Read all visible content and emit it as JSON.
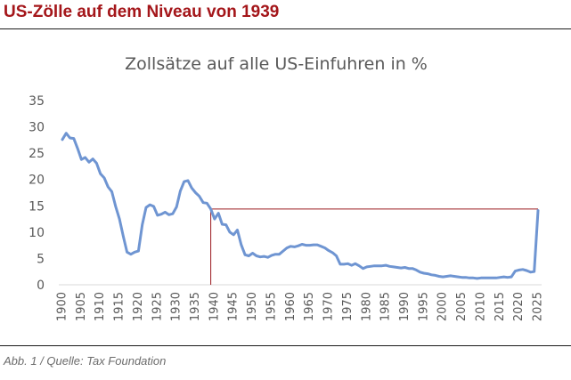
{
  "header": {
    "title": "US-Zölle auf dem Niveau von 1939"
  },
  "caption": "Abb. 1 / Quelle: Tax Foundation",
  "colors": {
    "title": "#a4161a",
    "line": "#6f95d2",
    "reference": "#9b1b1f",
    "axis": "#d9d9d9"
  },
  "chart_data": {
    "type": "line",
    "title": "Zollsätze auf alle US-Einfuhren in %",
    "xlabel": "",
    "ylabel": "",
    "xlim": [
      1900,
      2025
    ],
    "ylim": [
      0,
      35
    ],
    "yticks": [
      0,
      5,
      10,
      15,
      20,
      25,
      30,
      35
    ],
    "xticks": [
      1900,
      1905,
      1910,
      1915,
      1920,
      1925,
      1930,
      1935,
      1940,
      1945,
      1950,
      1955,
      1960,
      1965,
      1970,
      1975,
      1980,
      1985,
      1990,
      1995,
      2000,
      2005,
      2010,
      2015,
      2020,
      2025
    ],
    "grid": false,
    "series": [
      {
        "name": "",
        "x": [
          1900,
          1901,
          1902,
          1903,
          1904,
          1905,
          1906,
          1907,
          1908,
          1909,
          1910,
          1911,
          1912,
          1913,
          1914,
          1915,
          1916,
          1917,
          1918,
          1919,
          1920,
          1921,
          1922,
          1923,
          1924,
          1925,
          1926,
          1927,
          1928,
          1929,
          1930,
          1931,
          1932,
          1933,
          1934,
          1935,
          1936,
          1937,
          1938,
          1939,
          1940,
          1941,
          1942,
          1943,
          1944,
          1945,
          1946,
          1947,
          1948,
          1949,
          1950,
          1951,
          1952,
          1953,
          1954,
          1955,
          1956,
          1957,
          1958,
          1959,
          1960,
          1961,
          1962,
          1963,
          1964,
          1965,
          1966,
          1967,
          1968,
          1969,
          1970,
          1971,
          1972,
          1973,
          1974,
          1975,
          1976,
          1977,
          1978,
          1979,
          1980,
          1981,
          1982,
          1983,
          1984,
          1985,
          1986,
          1987,
          1988,
          1989,
          1990,
          1991,
          1992,
          1993,
          1994,
          1995,
          1996,
          1997,
          1998,
          1999,
          2000,
          2001,
          2002,
          2003,
          2004,
          2005,
          2006,
          2007,
          2008,
          2009,
          2010,
          2011,
          2012,
          2013,
          2014,
          2015,
          2016,
          2017,
          2018,
          2019,
          2020,
          2021,
          2022,
          2023,
          2024,
          2025
        ],
        "y": [
          27.6,
          28.8,
          27.9,
          27.8,
          25.9,
          23.8,
          24.2,
          23.3,
          23.9,
          23.1,
          21.1,
          20.3,
          18.6,
          17.7,
          14.9,
          12.5,
          9.2,
          6.2,
          5.8,
          6.2,
          6.4,
          11.4,
          14.7,
          15.2,
          14.9,
          13.2,
          13.4,
          13.8,
          13.3,
          13.5,
          14.8,
          17.8,
          19.6,
          19.8,
          18.4,
          17.5,
          16.8,
          15.6,
          15.5,
          14.4,
          12.5,
          13.6,
          11.5,
          11.4,
          10.0,
          9.5,
          10.4,
          7.6,
          5.7,
          5.5,
          6.0,
          5.5,
          5.3,
          5.4,
          5.2,
          5.6,
          5.8,
          5.8,
          6.4,
          7.0,
          7.3,
          7.2,
          7.4,
          7.7,
          7.5,
          7.5,
          7.6,
          7.6,
          7.3,
          7.0,
          6.5,
          6.1,
          5.5,
          3.9,
          3.9,
          4.0,
          3.7,
          4.0,
          3.6,
          3.1,
          3.4,
          3.5,
          3.6,
          3.6,
          3.6,
          3.7,
          3.5,
          3.4,
          3.3,
          3.2,
          3.3,
          3.1,
          3.1,
          2.8,
          2.4,
          2.2,
          2.1,
          1.9,
          1.8,
          1.6,
          1.5,
          1.6,
          1.7,
          1.6,
          1.5,
          1.4,
          1.4,
          1.3,
          1.3,
          1.2,
          1.3,
          1.3,
          1.3,
          1.3,
          1.3,
          1.4,
          1.5,
          1.4,
          1.5,
          2.6,
          2.8,
          2.9,
          2.7,
          2.4,
          2.5,
          14.1
        ]
      }
    ],
    "reference_line": {
      "x": 1939,
      "y": 14.4,
      "x_end": 2025
    }
  }
}
